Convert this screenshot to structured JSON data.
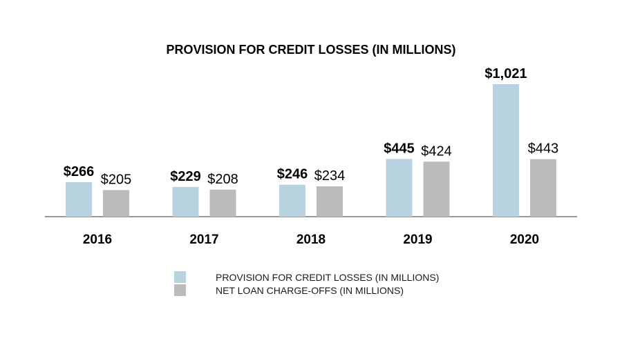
{
  "chart_data": {
    "type": "bar",
    "title": "PROVISION FOR CREDIT LOSSES (IN MILLIONS)",
    "categories": [
      "2016",
      "2017",
      "2018",
      "2019",
      "2020"
    ],
    "series": [
      {
        "name": "PROVISION FOR CREDIT LOSSES (IN MILLIONS)",
        "values": [
          266,
          229,
          246,
          445,
          1021
        ],
        "labels": [
          "$266",
          "$229",
          "$246",
          "$445",
          "$1,021"
        ],
        "color": "#b8d3df",
        "label_bold": true
      },
      {
        "name": "NET LOAN CHARGE-OFFS (IN MILLIONS)",
        "values": [
          205,
          208,
          234,
          424,
          443
        ],
        "labels": [
          "$205",
          "$208",
          "$234",
          "$424",
          "$443"
        ],
        "color": "#bbbbbb",
        "label_bold": false
      }
    ],
    "xlabel": "",
    "ylabel": "",
    "ylim": [
      0,
      1021
    ],
    "grid": false,
    "legend": "bottom",
    "axis_color": "#999999"
  }
}
